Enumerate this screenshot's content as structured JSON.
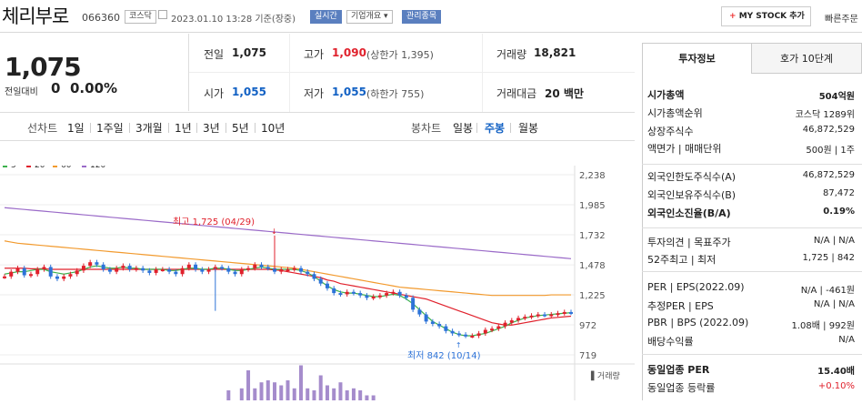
{
  "header": {
    "name": "체리부로",
    "code": "066360",
    "market": "코스닥",
    "datetime": "2023.01.10 13:28 기준(장중)",
    "realtime": "실시간",
    "company_info": "기업개요",
    "mgmt": "관리종목",
    "mystock": "MY STOCK 추가",
    "quick": "빠른주문"
  },
  "price": {
    "now": "1,075",
    "change_label": "전일대비",
    "change": "0",
    "change_pct": "0.00%"
  },
  "quote": {
    "prev_label": "전일",
    "prev": "1,075",
    "high_label": "고가",
    "high": "1,090",
    "upper_label": "(상한가 1,395)",
    "volume_label": "거래량",
    "volume": "18,821",
    "open_label": "시가",
    "open": "1,055",
    "low_label": "저가",
    "low": "1,055",
    "lower_label": "(하한가 755)",
    "amount_label": "거래대금",
    "amount": "20 백만"
  },
  "chart_tabs": {
    "line_label": "선차트",
    "line": [
      "1일",
      "1주일",
      "3개월",
      "1년",
      "3년",
      "5년",
      "10년"
    ],
    "candle_label": "봉차트",
    "candle": [
      "일봉",
      "주봉",
      "월봉"
    ],
    "active": "주봉"
  },
  "chart_data": {
    "type": "candlestick",
    "ma_legend": [
      {
        "name": "5",
        "color": "#3db14d"
      },
      {
        "name": "20",
        "color": "#e0212c"
      },
      {
        "name": "60",
        "color": "#f29a2e"
      },
      {
        "name": "120",
        "color": "#9a6ac8"
      }
    ],
    "y_ticks": [
      "2,238",
      "1,985",
      "1,732",
      "1,478",
      "1,225",
      "972",
      "719"
    ],
    "ylim": [
      719,
      2238
    ],
    "annotations": {
      "high": "최고 1,725 (04/29)",
      "low": "최저 842 (10/14)"
    },
    "volume_label": "거래량",
    "closes": [
      1380,
      1420,
      1450,
      1390,
      1400,
      1440,
      1460,
      1380,
      1360,
      1380,
      1400,
      1430,
      1470,
      1500,
      1480,
      1440,
      1420,
      1450,
      1470,
      1440,
      1450,
      1430,
      1410,
      1440,
      1440,
      1420,
      1400,
      1450,
      1480,
      1440,
      1420,
      1440,
      1460,
      1450,
      1420,
      1400,
      1440,
      1450,
      1480,
      1460,
      1450,
      1420,
      1440,
      1440,
      1450,
      1420,
      1400,
      1360,
      1320,
      1280,
      1240,
      1230,
      1250,
      1240,
      1220,
      1200,
      1210,
      1220,
      1240,
      1250,
      1220,
      1200,
      1100,
      1060,
      1000,
      980,
      960,
      920,
      900,
      890,
      880,
      880,
      900,
      930,
      940,
      960,
      990,
      1010,
      1030,
      1040,
      1050,
      1060,
      1055,
      1060,
      1070,
      1080,
      1075
    ],
    "ma5": [
      1400,
      1410,
      1420,
      1420,
      1430,
      1440,
      1440,
      1420,
      1410,
      1400,
      1410,
      1420,
      1440,
      1460,
      1470,
      1460,
      1450,
      1450,
      1460,
      1450,
      1450,
      1440,
      1440,
      1440,
      1440,
      1430,
      1430,
      1440,
      1450,
      1450,
      1440,
      1440,
      1450,
      1450,
      1440,
      1430,
      1430,
      1440,
      1450,
      1460,
      1450,
      1440,
      1440,
      1440,
      1440,
      1430,
      1410,
      1380,
      1340,
      1300,
      1270,
      1250,
      1240,
      1240,
      1230,
      1220,
      1210,
      1210,
      1220,
      1230,
      1220,
      1190,
      1150,
      1100,
      1050,
      1000,
      970,
      940,
      910,
      890,
      880,
      880,
      890,
      900,
      920,
      940,
      960,
      990,
      1010,
      1030,
      1040,
      1050,
      1055,
      1060,
      1065,
      1070,
      1075
    ],
    "ma20": [
      1450,
      1450,
      1450,
      1450,
      1445,
      1445,
      1445,
      1440,
      1440,
      1440,
      1440,
      1440,
      1440,
      1440,
      1440,
      1440,
      1440,
      1440,
      1440,
      1440,
      1440,
      1440,
      1440,
      1440,
      1440,
      1440,
      1440,
      1440,
      1440,
      1440,
      1440,
      1440,
      1440,
      1440,
      1440,
      1440,
      1440,
      1440,
      1440,
      1440,
      1440,
      1435,
      1430,
      1420,
      1410,
      1400,
      1390,
      1380,
      1370,
      1350,
      1340,
      1320,
      1310,
      1300,
      1290,
      1280,
      1270,
      1260,
      1250,
      1240,
      1230,
      1220,
      1210,
      1200,
      1190,
      1170,
      1150,
      1130,
      1110,
      1090,
      1070,
      1050,
      1030,
      1010,
      990,
      980,
      970,
      970,
      980,
      990,
      1000,
      1010,
      1020,
      1030,
      1035,
      1040,
      1045
    ],
    "ma60": [
      1680,
      1670,
      1660,
      1655,
      1650,
      1645,
      1640,
      1635,
      1630,
      1625,
      1620,
      1615,
      1610,
      1605,
      1600,
      1595,
      1590,
      1585,
      1580,
      1575,
      1570,
      1565,
      1560,
      1555,
      1550,
      1545,
      1540,
      1535,
      1530,
      1525,
      1520,
      1515,
      1510,
      1505,
      1500,
      1495,
      1490,
      1485,
      1480,
      1475,
      1470,
      1465,
      1460,
      1455,
      1450,
      1440,
      1430,
      1420,
      1410,
      1400,
      1390,
      1380,
      1370,
      1360,
      1350,
      1340,
      1330,
      1320,
      1310,
      1300,
      1290,
      1285,
      1280,
      1275,
      1270,
      1265,
      1260,
      1255,
      1250,
      1245,
      1240,
      1235,
      1230,
      1225,
      1220,
      1220,
      1220,
      1220,
      1220,
      1220,
      1220,
      1220,
      1220,
      1225,
      1225,
      1225,
      1225
    ],
    "ma120": [
      1960,
      1955,
      1950,
      1945,
      1940,
      1935,
      1930,
      1925,
      1920,
      1915,
      1910,
      1905,
      1900,
      1895,
      1890,
      1885,
      1880,
      1875,
      1870,
      1865,
      1860,
      1855,
      1850,
      1845,
      1840,
      1835,
      1830,
      1825,
      1820,
      1815,
      1810,
      1805,
      1800,
      1795,
      1790,
      1785,
      1780,
      1775,
      1770,
      1765,
      1760,
      1755,
      1750,
      1745,
      1740,
      1735,
      1730,
      1725,
      1720,
      1715,
      1710,
      1705,
      1700,
      1695,
      1690,
      1685,
      1680,
      1675,
      1670,
      1665,
      1660,
      1655,
      1650,
      1645,
      1640,
      1635,
      1630,
      1625,
      1620,
      1615,
      1610,
      1605,
      1600,
      1595,
      1590,
      1585,
      1580,
      1575,
      1570,
      1565,
      1560,
      1555,
      1550,
      1545,
      1540,
      1535,
      1530
    ],
    "volume_rel": [
      0,
      0,
      0,
      0,
      0,
      0,
      0,
      0,
      0,
      0,
      0,
      0,
      0,
      0,
      0,
      0,
      0,
      0,
      0,
      0,
      0,
      0,
      0,
      0,
      0,
      0,
      0,
      0,
      0,
      0,
      0,
      0,
      0,
      0,
      0.1,
      0,
      0.12,
      0.3,
      0.12,
      0.18,
      0.2,
      0.18,
      0.15,
      0.2,
      0.12,
      0.35,
      0.12,
      0.1,
      0.25,
      0.15,
      0.12,
      0.18,
      0.1,
      0.12,
      0.1,
      0.05,
      0.05,
      0,
      0,
      0,
      0,
      0,
      0,
      0,
      0,
      0,
      0,
      0,
      0,
      0,
      0,
      0,
      0,
      0,
      0,
      0,
      0,
      0,
      0,
      0,
      0,
      0,
      0,
      0,
      0,
      0,
      0
    ]
  },
  "side": {
    "tab1": "투자정보",
    "tab2": "호가 10단계",
    "rows": [
      {
        "l": "시가총액",
        "v": "504억원",
        "bold": true
      },
      {
        "l": "시가총액순위",
        "v": "코스닥 1289위"
      },
      {
        "l": "상장주식수",
        "v": "46,872,529"
      },
      {
        "l": "액면가 | 매매단위",
        "v": "500원 | 1주"
      },
      {
        "l": "외국인한도주식수(A)",
        "v": "46,872,529"
      },
      {
        "l": "외국인보유주식수(B)",
        "v": "87,472"
      },
      {
        "l": "외국인소진율(B/A)",
        "v": "0.19%",
        "bold": true
      },
      {
        "l": "투자의견 | 목표주가",
        "v": "N/A | N/A"
      },
      {
        "l": "52주최고 | 최저",
        "v": "1,725 | 842"
      },
      {
        "l": "PER | EPS(2022.09)",
        "v": "N/A | -461원"
      },
      {
        "l": "추정PER | EPS",
        "v": "N/A | N/A"
      },
      {
        "l": "PBR | BPS (2022.09)",
        "v": "1.08배 | 992원"
      },
      {
        "l": "배당수익률",
        "v": "N/A"
      },
      {
        "l": "동일업종 PER",
        "v": "15.40배",
        "bold": true
      },
      {
        "l": "동일업종 등락률",
        "v": "+0.10%",
        "red": true
      }
    ]
  }
}
